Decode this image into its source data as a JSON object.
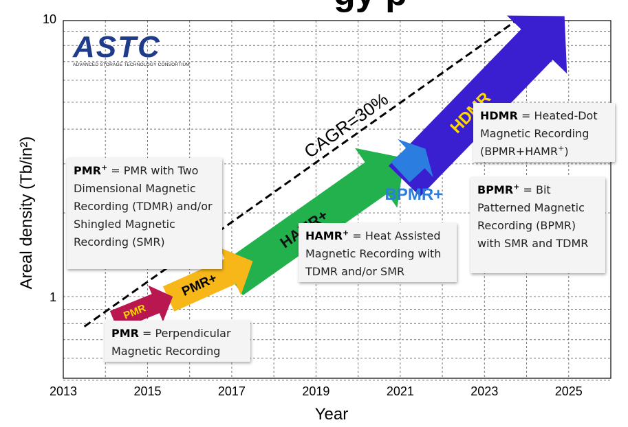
{
  "title_fragment": "gy    p",
  "logo": {
    "text": "ASTC",
    "subtitle": "ADVANCED STORAGE TECHNOLOGY CONSORTIUM"
  },
  "chart_data": {
    "type": "line",
    "xlabel": "Year",
    "ylabel": "Areal density (Tb/in²)",
    "y_scale": "log",
    "xlim": [
      2013,
      2026
    ],
    "ylim": [
      0.5,
      10
    ],
    "x_ticks": [
      "2013",
      "2015",
      "2017",
      "2019",
      "2021",
      "2023",
      "2025"
    ],
    "y_ticks": [
      "1",
      "10"
    ],
    "grid": true,
    "trend": {
      "label": "CAGR=30%",
      "style": "dashed",
      "x": [
        2013.5,
        2023.7
      ],
      "y": [
        0.78,
        9.7
      ]
    },
    "roadmap_arrows": [
      {
        "label": "PMR",
        "x_start": 2014.2,
        "x_end": 2015.6,
        "y_start": 0.82,
        "y_end": 1.0,
        "color": "#b8174f",
        "text_color": "#ffd700"
      },
      {
        "label": "PMR+",
        "x_start": 2015.5,
        "x_end": 2017.5,
        "y_start": 0.98,
        "y_end": 1.34,
        "color": "#f7b718",
        "text_color": "#000000"
      },
      {
        "label": "HAMR+",
        "x_start": 2017.0,
        "x_end": 2021.1,
        "y_start": 1.15,
        "y_end": 3.15,
        "color": "#22b14c",
        "text_color": "#111111"
      },
      {
        "label": "BPMR+",
        "x_start": 2021.0,
        "x_end": 2021.6,
        "y_start": 2.8,
        "y_end": 3.4,
        "color": "#2b7de0",
        "text_color": "#2b7de0"
      },
      {
        "label": "HDMR",
        "x_start": 2021.1,
        "x_end": 2024.9,
        "y_start": 2.6,
        "y_end": 10.2,
        "color": "#3a1fd0",
        "text_color": "#ffd700"
      }
    ]
  },
  "callouts": {
    "pmr_plus": {
      "term": "PMR",
      "sup": "+",
      "text": " = PMR with Two Dimensional Magnetic Recording (TDMR) and/or Shingled Magnetic Recording (SMR)"
    },
    "pmr": {
      "term": "PMR",
      "text": " = Perpendicular Magnetic Recording"
    },
    "hamr_plus": {
      "term": "HAMR",
      "sup": "+",
      "text": " = Heat Assisted Magnetic Recording with TDMR and/or SMR"
    },
    "hdmr": {
      "term": "HDMR",
      "text": " = Heated-Dot Magnetic Recording (BPMR+HAMR",
      "text_sup": "+",
      "text_end": ")"
    },
    "bpmr_plus": {
      "term": "BPMR",
      "sup": "+",
      "text": " = Bit Patterned Magnetic Recording (BPMR) with SMR and TDMR"
    }
  }
}
